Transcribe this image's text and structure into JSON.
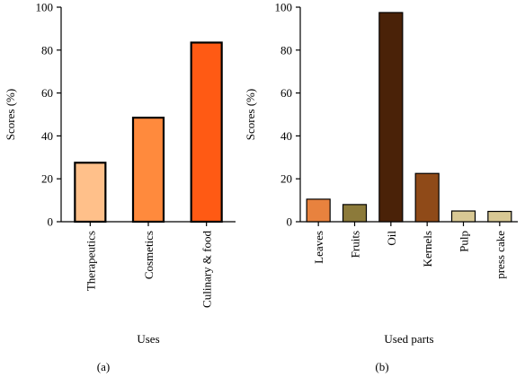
{
  "chart_data": [
    {
      "type": "bar",
      "panel_label": "(a)",
      "title": "",
      "xlabel": "Uses",
      "ylabel": "Scores (%)",
      "ylim": [
        0,
        100
      ],
      "yticks": [
        "0",
        "20",
        "40",
        "60",
        "80",
        "100"
      ],
      "categories": [
        "Therapeutics",
        "Cosmetics",
        "Culinary & food"
      ],
      "values": [
        27.5,
        48.5,
        83.5
      ],
      "colors": [
        "#FFC08A",
        "#FF8A3D",
        "#FF5A14"
      ],
      "bar_outline": "#000000",
      "grid": false,
      "legend": "none"
    },
    {
      "type": "bar",
      "panel_label": "(b)",
      "title": "",
      "xlabel": "Used parts",
      "ylabel": "Scores (%)",
      "ylim": [
        0,
        100
      ],
      "yticks": [
        "0",
        "20",
        "40",
        "60",
        "80",
        "100"
      ],
      "categories": [
        "Leaves",
        "Fruits",
        "Oil",
        "Kernels",
        "Pulp",
        "press cake"
      ],
      "values": [
        10.5,
        8.0,
        97.5,
        22.5,
        5.0,
        4.8
      ],
      "colors": [
        "#E8823E",
        "#8C7A3A",
        "#4A2208",
        "#8F4A18",
        "#D8C894",
        "#D8C894"
      ],
      "bar_outline": "#000000",
      "grid": false,
      "legend": "none"
    }
  ]
}
